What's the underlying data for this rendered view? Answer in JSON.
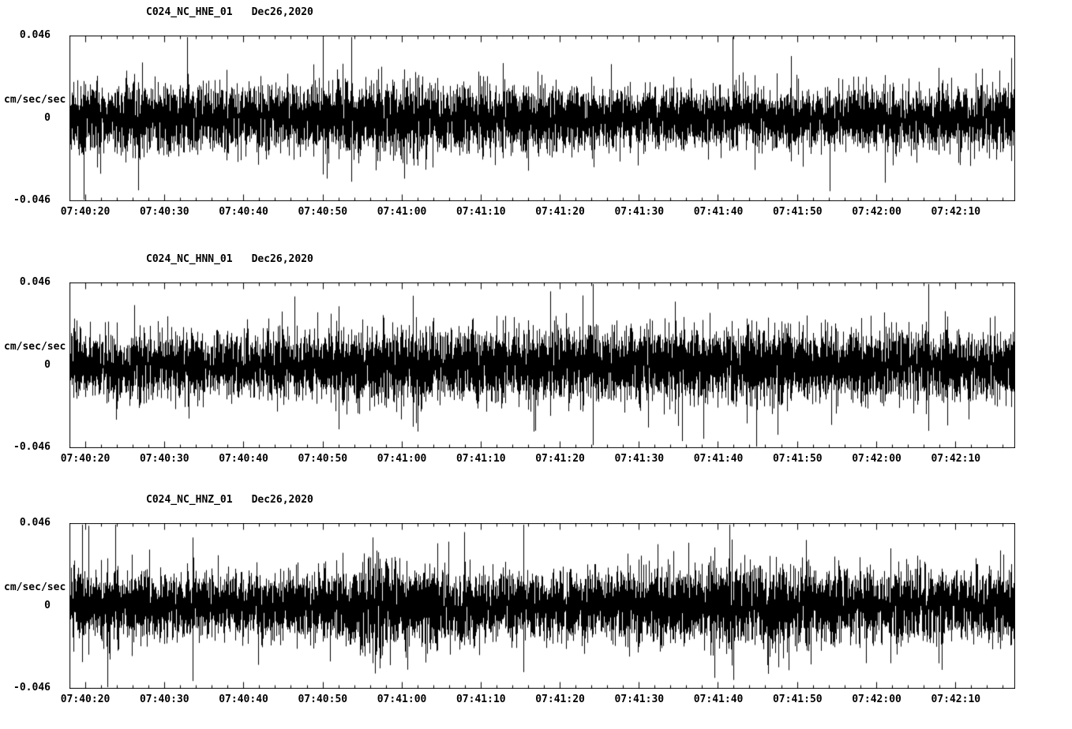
{
  "page": {
    "background": "#ffffff",
    "axis_color": "#000000",
    "trace_color": "#000000"
  },
  "chart_data": [
    {
      "type": "line",
      "kind": "seismogram",
      "title": "C024_NC_HNE_01",
      "date": "Dec26,2020",
      "ylabel": "cm/sec/sec",
      "ylim": [
        -0.046,
        0.046
      ],
      "yticks": [
        0.046,
        0,
        -0.046
      ],
      "ytick_labels": [
        "0.046",
        "0",
        "-0.046"
      ],
      "time_origin": "07:40:00",
      "x_start_s": 18,
      "x_end_s": 137.5,
      "major_tick_s": 10,
      "minor_tick_s": 2,
      "xtick_seconds": [
        20,
        30,
        40,
        50,
        60,
        70,
        80,
        90,
        100,
        110,
        120,
        130
      ],
      "xtick_labels": [
        "07:40:20",
        "07:40:30",
        "07:40:40",
        "07:40:50",
        "07:41:00",
        "07:41:10",
        "07:41:20",
        "07:41:30",
        "07:41:40",
        "07:41:50",
        "07:42:00",
        "07:42:10"
      ],
      "grid": false,
      "legend": false,
      "seed": 101,
      "sigma": 0.185,
      "noise_envelope": [
        [
          18,
          1.0
        ],
        [
          30,
          1.05
        ],
        [
          45,
          1.0
        ],
        [
          55,
          1.05
        ],
        [
          58,
          1.2
        ],
        [
          62,
          1.15
        ],
        [
          66,
          1.0
        ],
        [
          75,
          0.95
        ],
        [
          88,
          0.92
        ],
        [
          100,
          0.95
        ],
        [
          112,
          0.9
        ],
        [
          124,
          0.95
        ],
        [
          137.5,
          1.0
        ]
      ]
    },
    {
      "type": "line",
      "kind": "seismogram",
      "title": "C024_NC_HNN_01",
      "date": "Dec26,2020",
      "ylabel": "cm/sec/sec",
      "ylim": [
        -0.046,
        0.046
      ],
      "yticks": [
        0.046,
        0,
        -0.046
      ],
      "ytick_labels": [
        "0.046",
        "0",
        "-0.046"
      ],
      "time_origin": "07:40:00",
      "x_start_s": 18,
      "x_end_s": 137.5,
      "major_tick_s": 10,
      "minor_tick_s": 2,
      "xtick_seconds": [
        20,
        30,
        40,
        50,
        60,
        70,
        80,
        90,
        100,
        110,
        120,
        130
      ],
      "xtick_labels": [
        "07:40:20",
        "07:40:30",
        "07:40:40",
        "07:40:50",
        "07:41:00",
        "07:41:10",
        "07:41:20",
        "07:41:30",
        "07:41:40",
        "07:41:50",
        "07:42:00",
        "07:42:10"
      ],
      "grid": false,
      "legend": false,
      "seed": 202,
      "sigma": 0.19,
      "noise_envelope": [
        [
          18,
          0.95
        ],
        [
          28,
          1.05
        ],
        [
          38,
          0.95
        ],
        [
          48,
          1.0
        ],
        [
          54,
          1.2
        ],
        [
          60,
          1.1
        ],
        [
          68,
          1.15
        ],
        [
          76,
          1.1
        ],
        [
          84,
          1.0
        ],
        [
          92,
          1.15
        ],
        [
          100,
          1.1
        ],
        [
          108,
          1.15
        ],
        [
          116,
          1.05
        ],
        [
          124,
          1.1
        ],
        [
          130,
          0.95
        ],
        [
          137.5,
          1.05
        ]
      ]
    },
    {
      "type": "line",
      "kind": "seismogram",
      "title": "C024_NC_HNZ_01",
      "date": "Dec26,2020",
      "ylabel": "cm/sec/sec",
      "ylim": [
        -0.046,
        0.046
      ],
      "yticks": [
        0.046,
        0,
        -0.046
      ],
      "ytick_labels": [
        "0.046",
        "0",
        "-0.046"
      ],
      "time_origin": "07:40:00",
      "x_start_s": 18,
      "x_end_s": 137.5,
      "major_tick_s": 10,
      "minor_tick_s": 2,
      "xtick_seconds": [
        20,
        30,
        40,
        50,
        60,
        70,
        80,
        90,
        100,
        110,
        120,
        130
      ],
      "xtick_labels": [
        "07:40:20",
        "07:40:30",
        "07:40:40",
        "07:40:50",
        "07:41:00",
        "07:41:10",
        "07:41:20",
        "07:41:30",
        "07:41:40",
        "07:41:50",
        "07:42:00",
        "07:42:10"
      ],
      "grid": false,
      "legend": false,
      "seed": 303,
      "sigma": 0.19,
      "noise_envelope": [
        [
          18,
          1.0
        ],
        [
          28,
          0.95
        ],
        [
          38,
          0.9
        ],
        [
          48,
          1.0
        ],
        [
          54,
          1.3
        ],
        [
          56.5,
          1.75
        ],
        [
          59,
          1.4
        ],
        [
          63,
          1.25
        ],
        [
          70,
          1.1
        ],
        [
          80,
          1.0
        ],
        [
          90,
          1.05
        ],
        [
          97,
          1.25
        ],
        [
          104,
          1.3
        ],
        [
          110,
          1.2
        ],
        [
          118,
          1.05
        ],
        [
          126,
          1.1
        ],
        [
          137.5,
          1.1
        ]
      ]
    }
  ]
}
